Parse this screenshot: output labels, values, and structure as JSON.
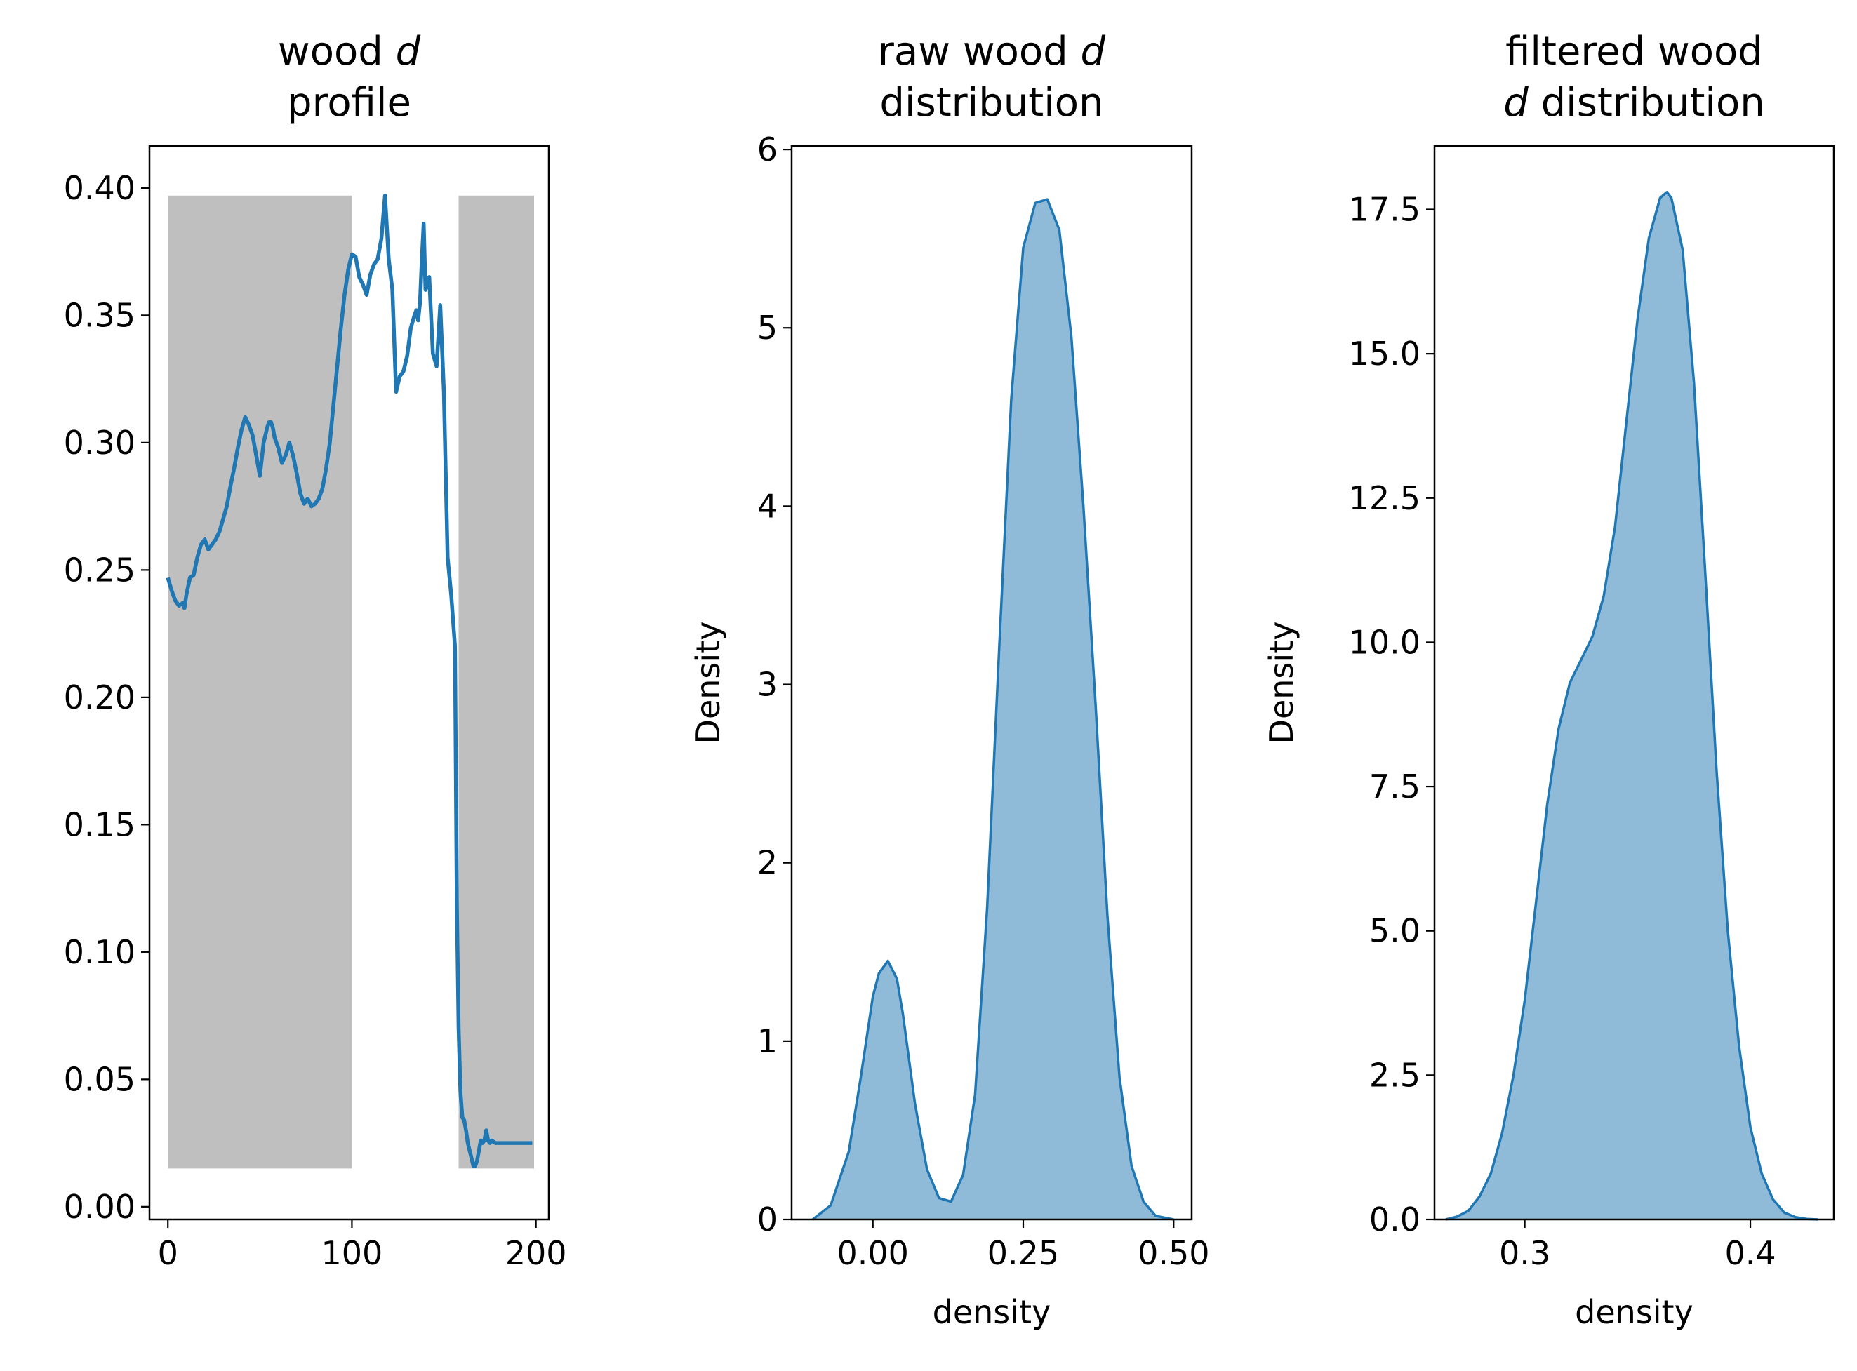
{
  "colors": {
    "line": "#1f77b4",
    "fill": "#1f77b4",
    "shade": "#bfbfbf",
    "axes": "#000000"
  },
  "chart_data": [
    {
      "type": "line",
      "title_lines": [
        [
          {
            "text": "wood "
          },
          {
            "text": "d",
            "italic": true
          }
        ],
        [
          {
            "text": "profile"
          }
        ]
      ],
      "xlabel": "",
      "ylabel": "",
      "xlim": [
        -10,
        207
      ],
      "ylim": [
        -0.005,
        0.4165
      ],
      "xticks": [
        0,
        100,
        200
      ],
      "xtick_labels": [
        "0",
        "100",
        "200"
      ],
      "yticks": [
        0.0,
        0.05,
        0.1,
        0.15,
        0.2,
        0.25,
        0.3,
        0.35,
        0.4
      ],
      "ytick_labels": [
        "0.00",
        "0.05",
        "0.10",
        "0.15",
        "0.20",
        "0.25",
        "0.30",
        "0.35",
        "0.40"
      ],
      "shaded_regions": [
        {
          "x0": 0,
          "x1": 100,
          "y0": 0.015,
          "y1": 0.397
        },
        {
          "x0": 158,
          "x1": 199,
          "y0": 0.015,
          "y1": 0.397
        }
      ],
      "series": [
        {
          "x": [
            0,
            2,
            4,
            6,
            8,
            9,
            10,
            12,
            14,
            16,
            18,
            20,
            22,
            24,
            26,
            28,
            30,
            32,
            34,
            36,
            38,
            40,
            42,
            44,
            46,
            48,
            50,
            52,
            54,
            55,
            56,
            57,
            58,
            60,
            62,
            64,
            66,
            68,
            70,
            72,
            74,
            76,
            78,
            80,
            82,
            84,
            86,
            88,
            90,
            92,
            94,
            96,
            98,
            100,
            102,
            104,
            106,
            108,
            110,
            112,
            114,
            116,
            118,
            120,
            122,
            124,
            126,
            128,
            130,
            132,
            134,
            135,
            136,
            137,
            138,
            139,
            140,
            142,
            144,
            146,
            148,
            150,
            152,
            154,
            156,
            157,
            158,
            159,
            160,
            161,
            162,
            163,
            164,
            165,
            166,
            167,
            168,
            169,
            170,
            171,
            172,
            173,
            174,
            175,
            176,
            178,
            180,
            182,
            184,
            186,
            188,
            190,
            192,
            194,
            196,
            198
          ],
          "y": [
            0.247,
            0.242,
            0.238,
            0.236,
            0.237,
            0.235,
            0.24,
            0.247,
            0.248,
            0.255,
            0.26,
            0.262,
            0.258,
            0.26,
            0.262,
            0.265,
            0.27,
            0.275,
            0.283,
            0.29,
            0.298,
            0.305,
            0.31,
            0.307,
            0.303,
            0.295,
            0.287,
            0.3,
            0.306,
            0.308,
            0.308,
            0.306,
            0.302,
            0.298,
            0.292,
            0.295,
            0.3,
            0.295,
            0.288,
            0.28,
            0.276,
            0.278,
            0.275,
            0.276,
            0.278,
            0.282,
            0.29,
            0.3,
            0.315,
            0.33,
            0.345,
            0.358,
            0.368,
            0.374,
            0.373,
            0.365,
            0.362,
            0.358,
            0.366,
            0.37,
            0.372,
            0.38,
            0.397,
            0.372,
            0.36,
            0.32,
            0.326,
            0.328,
            0.334,
            0.345,
            0.35,
            0.352,
            0.348,
            0.355,
            0.372,
            0.386,
            0.36,
            0.365,
            0.335,
            0.33,
            0.354,
            0.32,
            0.255,
            0.24,
            0.22,
            0.12,
            0.07,
            0.045,
            0.035,
            0.034,
            0.03,
            0.025,
            0.022,
            0.019,
            0.016,
            0.016,
            0.018,
            0.022,
            0.026,
            0.025,
            0.026,
            0.03,
            0.026,
            0.025,
            0.026,
            0.025,
            0.025,
            0.025,
            0.025,
            0.025,
            0.025,
            0.025,
            0.025,
            0.025,
            0.025,
            0.025
          ]
        }
      ]
    },
    {
      "type": "area",
      "title_lines": [
        [
          {
            "text": "raw wood "
          },
          {
            "text": "d",
            "italic": true
          }
        ],
        [
          {
            "text": "distribution"
          }
        ]
      ],
      "xlabel": "density",
      "ylabel": "Density",
      "xlim": [
        -0.135,
        0.53
      ],
      "ylim": [
        0,
        6.02
      ],
      "xticks": [
        0.0,
        0.25,
        0.5
      ],
      "xtick_labels": [
        "0.00",
        "0.25",
        "0.50"
      ],
      "yticks": [
        0,
        1,
        2,
        3,
        4,
        5,
        6
      ],
      "ytick_labels": [
        "0",
        "1",
        "2",
        "3",
        "4",
        "5",
        "6"
      ],
      "series": [
        {
          "x": [
            -0.1,
            -0.07,
            -0.04,
            -0.02,
            0.0,
            0.01,
            0.025,
            0.04,
            0.05,
            0.07,
            0.09,
            0.11,
            0.13,
            0.15,
            0.17,
            0.19,
            0.21,
            0.23,
            0.25,
            0.27,
            0.29,
            0.31,
            0.33,
            0.35,
            0.37,
            0.39,
            0.41,
            0.43,
            0.45,
            0.47,
            0.5
          ],
          "y": [
            0.0,
            0.08,
            0.38,
            0.8,
            1.25,
            1.38,
            1.45,
            1.35,
            1.15,
            0.65,
            0.28,
            0.12,
            0.1,
            0.25,
            0.7,
            1.75,
            3.2,
            4.6,
            5.45,
            5.7,
            5.72,
            5.55,
            4.95,
            4.0,
            2.9,
            1.7,
            0.8,
            0.3,
            0.1,
            0.02,
            0.0
          ]
        }
      ]
    },
    {
      "type": "area",
      "title_lines": [
        [
          {
            "text": "filtered wood"
          }
        ],
        [
          {
            "text": "d",
            "italic": true
          },
          {
            "text": " distribution"
          }
        ]
      ],
      "xlabel": "density",
      "ylabel": "Density",
      "xlim": [
        0.26,
        0.437
      ],
      "ylim": [
        0,
        18.6
      ],
      "xticks": [
        0.3,
        0.4
      ],
      "xtick_labels": [
        "0.3",
        "0.4"
      ],
      "yticks": [
        0.0,
        2.5,
        5.0,
        7.5,
        10.0,
        12.5,
        15.0,
        17.5
      ],
      "ytick_labels": [
        "0.0",
        "2.5",
        "5.0",
        "7.5",
        "10.0",
        "12.5",
        "15.0",
        "17.5"
      ],
      "series": [
        {
          "x": [
            0.265,
            0.27,
            0.275,
            0.28,
            0.285,
            0.29,
            0.295,
            0.3,
            0.305,
            0.31,
            0.315,
            0.32,
            0.325,
            0.33,
            0.335,
            0.34,
            0.345,
            0.35,
            0.355,
            0.36,
            0.363,
            0.365,
            0.37,
            0.375,
            0.38,
            0.385,
            0.39,
            0.395,
            0.4,
            0.405,
            0.41,
            0.415,
            0.42,
            0.425,
            0.43
          ],
          "y": [
            0.0,
            0.05,
            0.15,
            0.4,
            0.8,
            1.5,
            2.5,
            3.8,
            5.5,
            7.2,
            8.5,
            9.3,
            9.7,
            10.1,
            10.8,
            12.0,
            13.8,
            15.6,
            17.0,
            17.7,
            17.8,
            17.7,
            16.8,
            14.5,
            11.2,
            7.8,
            5.0,
            3.0,
            1.6,
            0.8,
            0.35,
            0.12,
            0.04,
            0.01,
            0.0
          ]
        }
      ]
    }
  ]
}
